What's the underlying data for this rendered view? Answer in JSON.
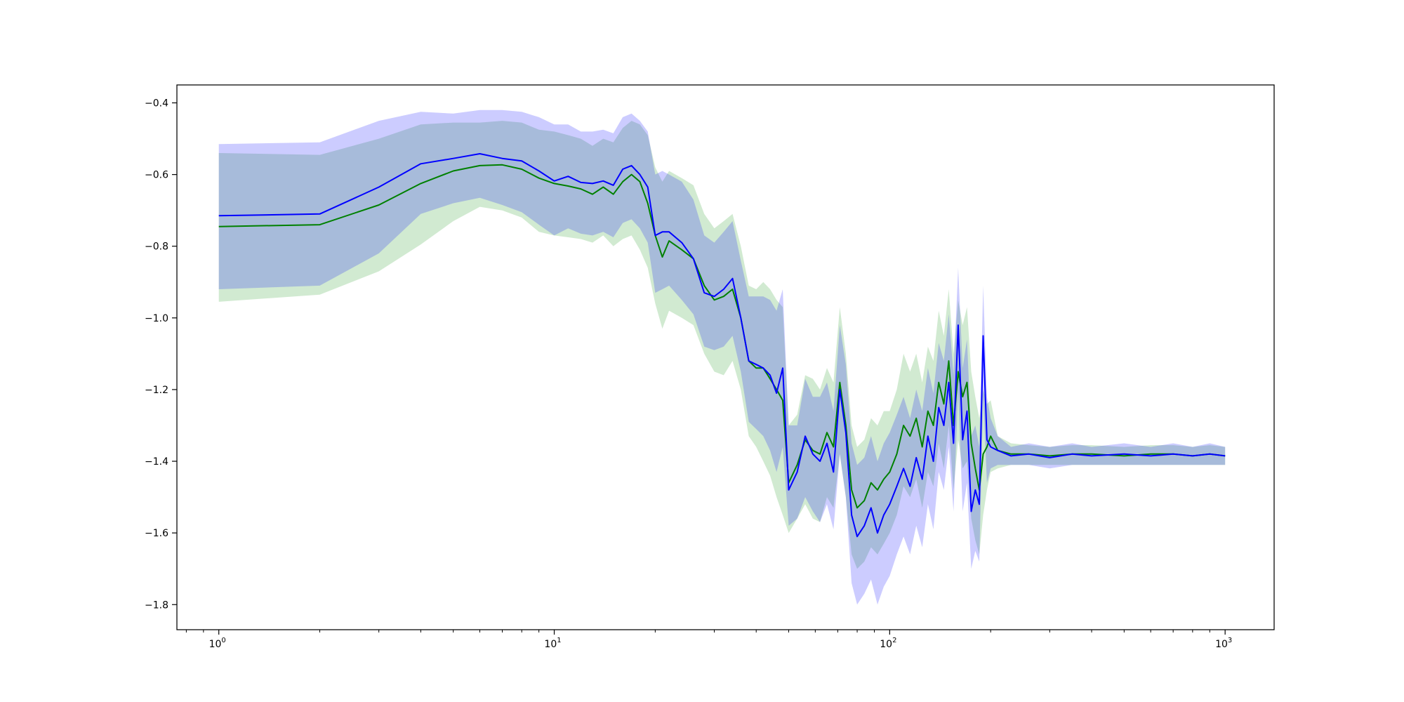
{
  "chart_data": {
    "type": "line",
    "title": "",
    "xlabel": "",
    "ylabel": "",
    "xscale": "log",
    "xlim": [
      0.75,
      1400
    ],
    "ylim": [
      -1.87,
      -0.35
    ],
    "grid": false,
    "legend": "none",
    "x_ticks": [
      {
        "value": 1,
        "base": "10",
        "exp": "0"
      },
      {
        "value": 10,
        "base": "10",
        "exp": "1"
      },
      {
        "value": 100,
        "base": "10",
        "exp": "2"
      },
      {
        "value": 1000,
        "base": "10",
        "exp": "3"
      }
    ],
    "y_ticks": [
      {
        "value": -0.4,
        "label": "−0.4"
      },
      {
        "value": -0.6,
        "label": "−0.6"
      },
      {
        "value": -0.8,
        "label": "−0.8"
      },
      {
        "value": -1.0,
        "label": "−1.0"
      },
      {
        "value": -1.2,
        "label": "−1.2"
      },
      {
        "value": -1.4,
        "label": "−1.4"
      },
      {
        "value": -1.6,
        "label": "−1.6"
      },
      {
        "value": -1.8,
        "label": "−1.8"
      }
    ],
    "series": [
      {
        "color": "#008000",
        "band_color": "#2ca02c",
        "band_opacity": 0.22,
        "x": [
          1,
          2,
          3,
          4,
          5,
          6,
          7,
          8,
          9,
          10,
          11,
          12,
          13,
          14,
          15,
          16,
          17,
          18,
          19,
          20,
          21,
          22,
          24,
          26,
          28,
          30,
          32,
          34,
          36,
          38,
          40,
          42,
          44,
          46,
          48,
          50,
          53,
          56,
          59,
          62,
          65,
          68,
          71,
          74,
          77,
          80,
          84,
          88,
          92,
          96,
          100,
          105,
          110,
          115,
          120,
          125,
          130,
          135,
          140,
          145,
          150,
          155,
          160,
          165,
          170,
          175,
          180,
          185,
          190,
          195,
          200,
          210,
          230,
          260,
          300,
          350,
          400,
          500,
          600,
          700,
          800,
          900,
          1000
        ],
        "y": [
          -0.745,
          -0.74,
          -0.685,
          -0.625,
          -0.59,
          -0.575,
          -0.573,
          -0.585,
          -0.61,
          -0.625,
          -0.632,
          -0.64,
          -0.655,
          -0.635,
          -0.655,
          -0.62,
          -0.6,
          -0.62,
          -0.68,
          -0.77,
          -0.83,
          -0.785,
          -0.81,
          -0.835,
          -0.91,
          -0.95,
          -0.94,
          -0.92,
          -1.0,
          -1.12,
          -1.14,
          -1.14,
          -1.17,
          -1.2,
          -1.23,
          -1.46,
          -1.41,
          -1.34,
          -1.37,
          -1.38,
          -1.32,
          -1.36,
          -1.18,
          -1.3,
          -1.48,
          -1.53,
          -1.51,
          -1.46,
          -1.48,
          -1.45,
          -1.43,
          -1.38,
          -1.3,
          -1.33,
          -1.28,
          -1.36,
          -1.26,
          -1.3,
          -1.18,
          -1.24,
          -1.12,
          -1.3,
          -1.15,
          -1.22,
          -1.18,
          -1.35,
          -1.42,
          -1.48,
          -1.38,
          -1.36,
          -1.33,
          -1.37,
          -1.38,
          -1.38,
          -1.385,
          -1.38,
          -1.38,
          -1.385,
          -1.38,
          -1.38,
          -1.385,
          -1.38,
          -1.385
        ],
        "lower": [
          -0.955,
          -0.935,
          -0.87,
          -0.795,
          -0.73,
          -0.69,
          -0.7,
          -0.72,
          -0.76,
          -0.77,
          -0.775,
          -0.78,
          -0.79,
          -0.77,
          -0.8,
          -0.78,
          -0.77,
          -0.81,
          -0.86,
          -0.96,
          -1.03,
          -0.98,
          -1.0,
          -1.02,
          -1.1,
          -1.15,
          -1.16,
          -1.12,
          -1.2,
          -1.33,
          -1.36,
          -1.4,
          -1.44,
          -1.5,
          -1.55,
          -1.6,
          -1.56,
          -1.52,
          -1.56,
          -1.57,
          -1.5,
          -1.53,
          -1.38,
          -1.5,
          -1.66,
          -1.7,
          -1.68,
          -1.64,
          -1.66,
          -1.63,
          -1.6,
          -1.55,
          -1.47,
          -1.5,
          -1.45,
          -1.53,
          -1.43,
          -1.47,
          -1.35,
          -1.42,
          -1.3,
          -1.48,
          -1.34,
          -1.42,
          -1.4,
          -1.56,
          -1.62,
          -1.66,
          -1.55,
          -1.48,
          -1.43,
          -1.42,
          -1.41,
          -1.41,
          -1.41,
          -1.41,
          -1.41,
          -1.41,
          -1.41,
          -1.41,
          -1.41,
          -1.41,
          -1.41
        ],
        "upper": [
          -0.54,
          -0.545,
          -0.5,
          -0.46,
          -0.455,
          -0.455,
          -0.45,
          -0.455,
          -0.475,
          -0.48,
          -0.49,
          -0.5,
          -0.52,
          -0.5,
          -0.51,
          -0.47,
          -0.45,
          -0.46,
          -0.49,
          -0.58,
          -0.62,
          -0.59,
          -0.61,
          -0.63,
          -0.71,
          -0.75,
          -0.73,
          -0.71,
          -0.8,
          -0.91,
          -0.92,
          -0.9,
          -0.92,
          -0.95,
          -0.97,
          -1.3,
          -1.27,
          -1.16,
          -1.17,
          -1.2,
          -1.14,
          -1.18,
          -0.97,
          -1.1,
          -1.3,
          -1.36,
          -1.34,
          -1.28,
          -1.3,
          -1.26,
          -1.26,
          -1.2,
          -1.1,
          -1.15,
          -1.1,
          -1.18,
          -1.08,
          -1.12,
          -0.98,
          -1.05,
          -0.92,
          -1.1,
          -0.95,
          -1.02,
          -0.97,
          -1.15,
          -1.22,
          -1.28,
          -1.2,
          -1.24,
          -1.23,
          -1.33,
          -1.35,
          -1.355,
          -1.36,
          -1.355,
          -1.355,
          -1.36,
          -1.355,
          -1.355,
          -1.36,
          -1.355,
          -1.36
        ]
      },
      {
        "color": "#0000ff",
        "band_color": "#0000ff",
        "band_opacity": 0.2,
        "x": [
          1,
          2,
          3,
          4,
          5,
          6,
          7,
          8,
          9,
          10,
          11,
          12,
          13,
          14,
          15,
          16,
          17,
          18,
          19,
          20,
          21,
          22,
          24,
          26,
          28,
          30,
          32,
          34,
          36,
          38,
          40,
          42,
          44,
          46,
          48,
          50,
          53,
          56,
          59,
          62,
          65,
          68,
          71,
          74,
          77,
          80,
          84,
          88,
          92,
          96,
          100,
          105,
          110,
          115,
          120,
          125,
          130,
          135,
          140,
          145,
          150,
          155,
          160,
          165,
          170,
          175,
          180,
          185,
          190,
          195,
          200,
          210,
          230,
          260,
          300,
          350,
          400,
          500,
          600,
          700,
          800,
          900,
          1000
        ],
        "y": [
          -0.715,
          -0.71,
          -0.635,
          -0.57,
          -0.555,
          -0.542,
          -0.555,
          -0.562,
          -0.59,
          -0.618,
          -0.605,
          -0.622,
          -0.625,
          -0.618,
          -0.63,
          -0.585,
          -0.575,
          -0.6,
          -0.635,
          -0.77,
          -0.76,
          -0.76,
          -0.79,
          -0.835,
          -0.93,
          -0.94,
          -0.92,
          -0.89,
          -1.0,
          -1.12,
          -1.13,
          -1.14,
          -1.16,
          -1.21,
          -1.14,
          -1.48,
          -1.43,
          -1.33,
          -1.38,
          -1.4,
          -1.35,
          -1.43,
          -1.2,
          -1.32,
          -1.55,
          -1.61,
          -1.58,
          -1.53,
          -1.6,
          -1.55,
          -1.52,
          -1.47,
          -1.42,
          -1.47,
          -1.39,
          -1.45,
          -1.33,
          -1.4,
          -1.25,
          -1.3,
          -1.18,
          -1.35,
          -1.02,
          -1.34,
          -1.26,
          -1.54,
          -1.48,
          -1.52,
          -1.05,
          -1.34,
          -1.36,
          -1.37,
          -1.385,
          -1.38,
          -1.39,
          -1.38,
          -1.385,
          -1.38,
          -1.385,
          -1.38,
          -1.385,
          -1.38,
          -1.385
        ],
        "lower": [
          -0.92,
          -0.91,
          -0.82,
          -0.71,
          -0.68,
          -0.665,
          -0.685,
          -0.705,
          -0.74,
          -0.77,
          -0.75,
          -0.765,
          -0.77,
          -0.76,
          -0.775,
          -0.735,
          -0.725,
          -0.75,
          -0.79,
          -0.93,
          -0.92,
          -0.91,
          -0.95,
          -0.99,
          -1.08,
          -1.09,
          -1.08,
          -1.05,
          -1.15,
          -1.29,
          -1.31,
          -1.33,
          -1.37,
          -1.43,
          -1.36,
          -1.58,
          -1.56,
          -1.5,
          -1.54,
          -1.57,
          -1.52,
          -1.59,
          -1.38,
          -1.5,
          -1.74,
          -1.8,
          -1.77,
          -1.73,
          -1.8,
          -1.75,
          -1.72,
          -1.66,
          -1.61,
          -1.66,
          -1.58,
          -1.64,
          -1.52,
          -1.59,
          -1.43,
          -1.48,
          -1.36,
          -1.54,
          -1.2,
          -1.54,
          -1.46,
          -1.7,
          -1.65,
          -1.68,
          -1.22,
          -1.46,
          -1.42,
          -1.41,
          -1.41,
          -1.41,
          -1.42,
          -1.41,
          -1.41,
          -1.41,
          -1.41,
          -1.41,
          -1.41,
          -1.41,
          -1.41
        ],
        "upper": [
          -0.515,
          -0.51,
          -0.45,
          -0.425,
          -0.43,
          -0.42,
          -0.42,
          -0.425,
          -0.44,
          -0.46,
          -0.46,
          -0.48,
          -0.48,
          -0.475,
          -0.485,
          -0.44,
          -0.43,
          -0.45,
          -0.48,
          -0.6,
          -0.59,
          -0.6,
          -0.62,
          -0.67,
          -0.77,
          -0.79,
          -0.76,
          -0.73,
          -0.84,
          -0.94,
          -0.94,
          -0.94,
          -0.95,
          -0.98,
          -0.92,
          -1.3,
          -1.3,
          -1.17,
          -1.22,
          -1.22,
          -1.18,
          -1.26,
          -1.02,
          -1.13,
          -1.35,
          -1.41,
          -1.39,
          -1.33,
          -1.4,
          -1.35,
          -1.32,
          -1.27,
          -1.22,
          -1.28,
          -1.2,
          -1.26,
          -1.14,
          -1.21,
          -1.07,
          -1.12,
          -0.99,
          -1.16,
          -0.86,
          -1.14,
          -1.06,
          -1.33,
          -1.3,
          -1.36,
          -0.91,
          -1.22,
          -1.28,
          -1.33,
          -1.36,
          -1.35,
          -1.36,
          -1.35,
          -1.36,
          -1.35,
          -1.36,
          -1.35,
          -1.36,
          -1.35,
          -1.36
        ]
      }
    ]
  }
}
